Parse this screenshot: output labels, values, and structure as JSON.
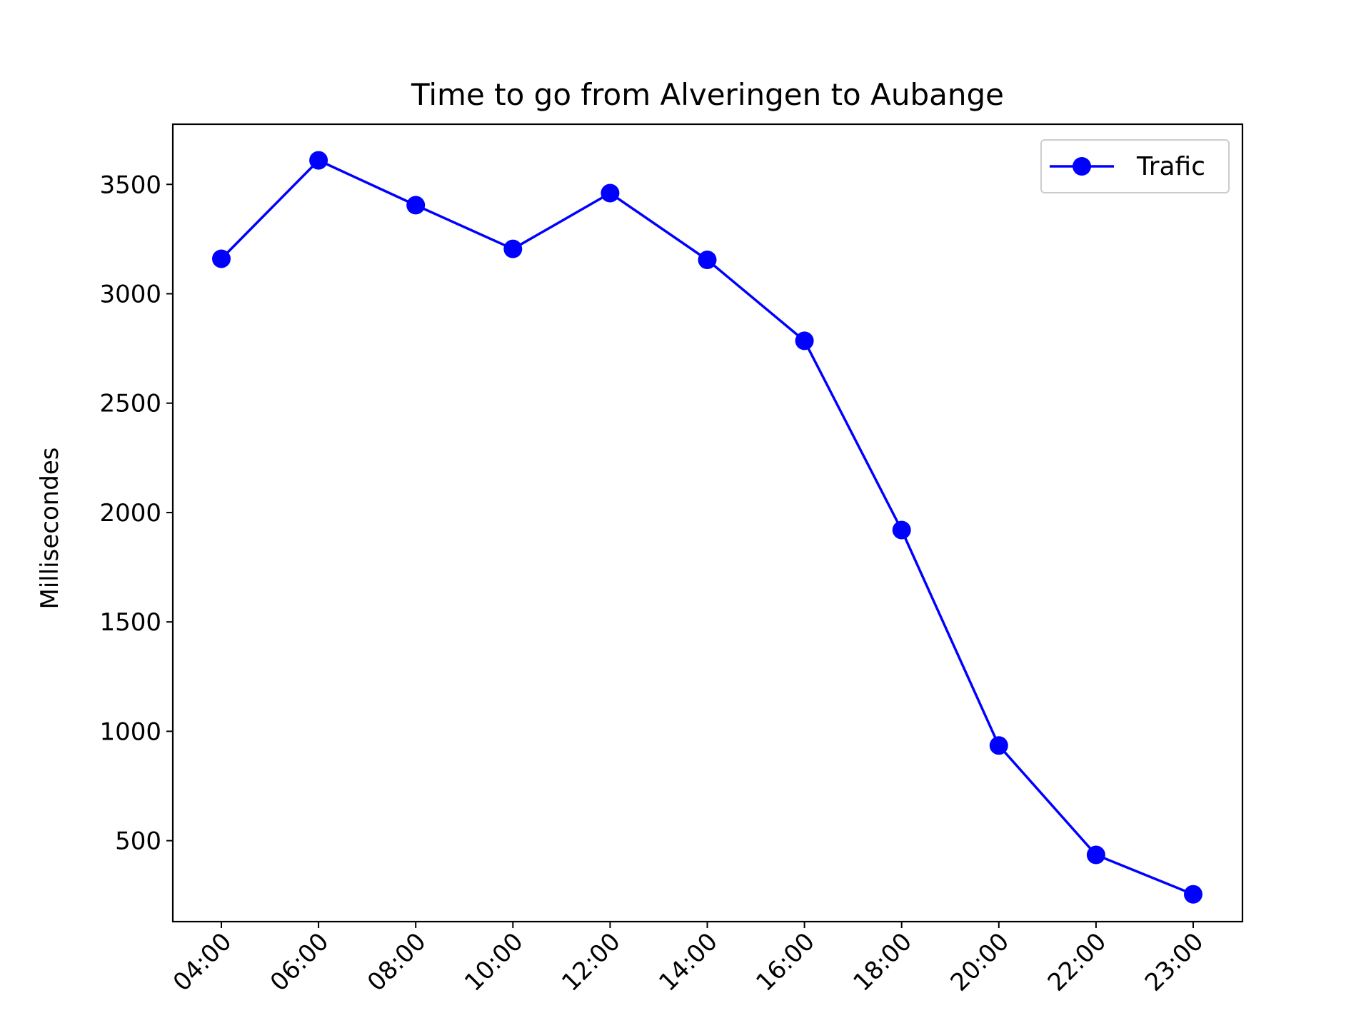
{
  "chart_data": {
    "type": "line",
    "title": "Time to go from Alveringen to Aubange",
    "xlabel": "",
    "ylabel": "Millisecondes",
    "categories": [
      "04:00",
      "06:00",
      "08:00",
      "10:00",
      "12:00",
      "14:00",
      "16:00",
      "18:00",
      "20:00",
      "22:00",
      "23:00"
    ],
    "series": [
      {
        "name": "Trafic",
        "color": "#0000ff",
        "marker": "circle",
        "values": [
          3160,
          3610,
          3405,
          3205,
          3460,
          3155,
          2785,
          1920,
          935,
          435,
          255
        ]
      }
    ],
    "yticks": [
      500,
      1000,
      1500,
      2000,
      2500,
      3000,
      3500
    ],
    "ytick_labels": [
      "500",
      "1000",
      "1500",
      "2000",
      "2500",
      "3000",
      "3500"
    ],
    "ylim": [
      130,
      3775
    ],
    "grid": false,
    "legend_position": "upper right"
  }
}
